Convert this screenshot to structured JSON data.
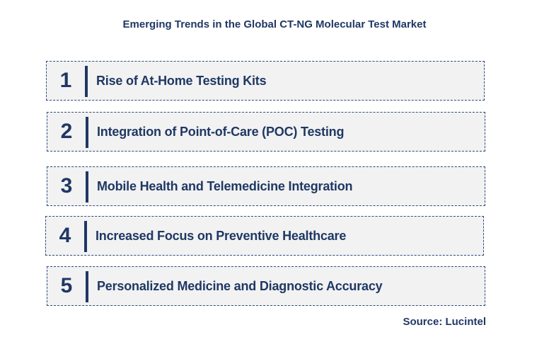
{
  "title": "Emerging Trends in the Global CT-NG Molecular Test Market",
  "trends": [
    {
      "number": "1",
      "label": "Rise of At-Home Testing Kits"
    },
    {
      "number": "2",
      "label": "Integration of Point-of-Care (POC) Testing"
    },
    {
      "number": "3",
      "label": "Mobile Health and Telemedicine Integration"
    },
    {
      "number": "4",
      "label": "Increased Focus on Preventive Healthcare"
    },
    {
      "number": "5",
      "label": "Personalized Medicine and Diagnostic Accuracy"
    }
  ],
  "source": "Source: Lucintel",
  "colors": {
    "text": "#1f3864",
    "row_background": "#f2f2f2",
    "border": "#2f4a7a"
  }
}
